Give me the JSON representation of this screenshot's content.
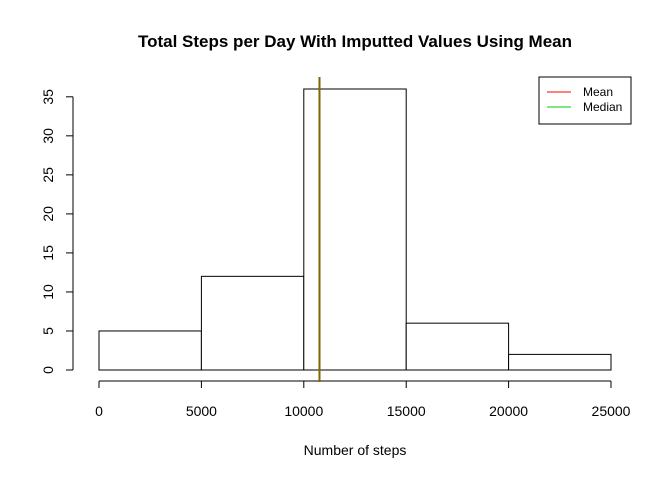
{
  "chart_data": {
    "type": "bar",
    "title": "Total Steps per Day With Imputted Values Using Mean",
    "xlabel": "Number of steps",
    "ylabel": "",
    "bins": [
      {
        "from": 0,
        "to": 5000,
        "count": 5
      },
      {
        "from": 5000,
        "to": 10000,
        "count": 12
      },
      {
        "from": 10000,
        "to": 15000,
        "count": 36
      },
      {
        "from": 15000,
        "to": 20000,
        "count": 6
      },
      {
        "from": 20000,
        "to": 25000,
        "count": 2
      }
    ],
    "xlim": [
      0,
      25000
    ],
    "ylim": [
      0,
      36
    ],
    "x_ticks": [
      0,
      5000,
      10000,
      15000,
      20000,
      25000
    ],
    "y_ticks": [
      0,
      5,
      10,
      15,
      20,
      25,
      30,
      35
    ],
    "bar_fill": "#ffffff",
    "bar_stroke": "#000000",
    "vlines": [
      {
        "name": "Mean",
        "value": 10766.19,
        "color": "#ff0000"
      },
      {
        "name": "Median",
        "value": 10766.19,
        "color": "#00cd00"
      }
    ],
    "overlap_color": "#808000",
    "legend": {
      "position": "top-right",
      "entries": [
        {
          "label": "Mean",
          "color": "#ff0000"
        },
        {
          "label": "Median",
          "color": "#00cd00"
        }
      ]
    },
    "grid": false
  }
}
